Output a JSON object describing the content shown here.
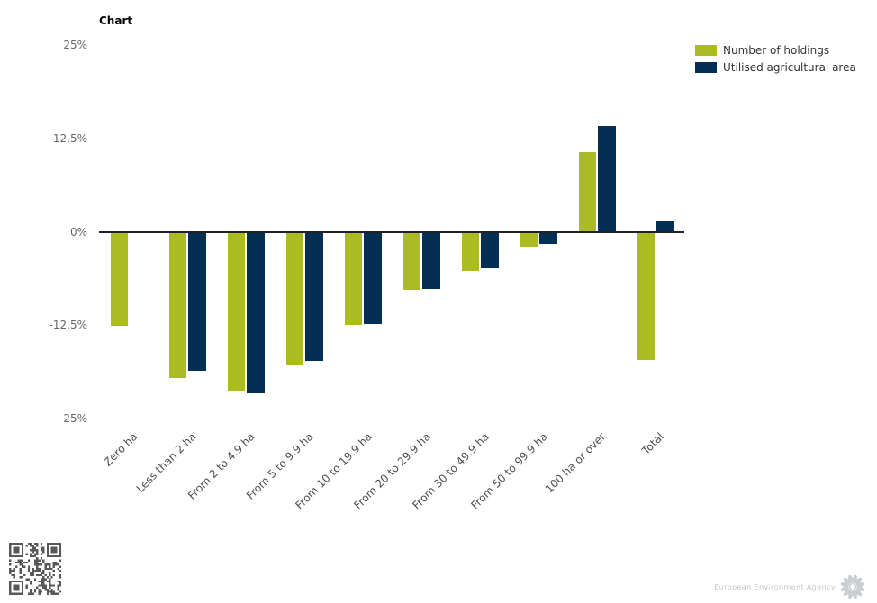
{
  "chart_data": {
    "type": "bar",
    "title": "Chart",
    "categories": [
      "Zero ha",
      "Less than 2 ha",
      "From 2 to 4.9 ha",
      "From 5 to 9.9 ha",
      "From 10 to 19.9 ha",
      "From 20 to 29.9 ha",
      "From 30 to 49.9 ha",
      "From 50 to 99.9 ha",
      "100 ha or over",
      "Total"
    ],
    "series": [
      {
        "name": "Number of holdings",
        "color": "#aabc22",
        "values": [
          -12.5,
          -19.4,
          -21.1,
          -17.6,
          -12.4,
          -7.7,
          -5.1,
          -1.9,
          10.7,
          -17.0
        ]
      },
      {
        "name": "Utilised agricultural area",
        "color": "#032f55",
        "values": [
          null,
          -18.5,
          -21.5,
          -17.2,
          -12.2,
          -7.5,
          -4.8,
          -1.5,
          14.2,
          1.4
        ]
      }
    ],
    "yticks": [
      "25%",
      "12.5%",
      "0%",
      "-12.5%",
      "-25%"
    ],
    "ylim": [
      -25,
      25
    ],
    "xlabel": "",
    "ylabel": "",
    "grid": false,
    "legend_position": "top-right",
    "zero_line_color": "#222222",
    "value_unit": "%"
  },
  "footer": {
    "agency": "European Environment Agency"
  },
  "icons": {
    "qr": "qr-code",
    "logo": "eea-sunflower-logo"
  }
}
